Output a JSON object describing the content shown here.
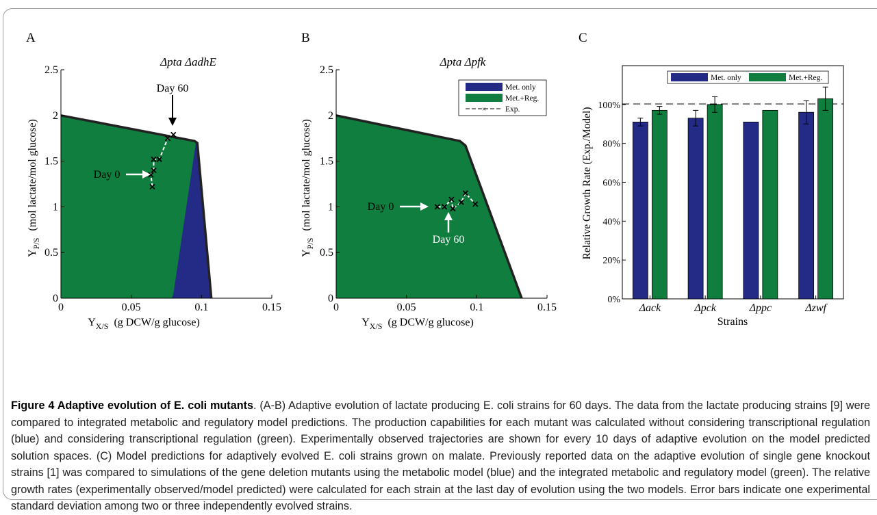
{
  "figure": {
    "caption_title": "Figure 4 Adaptive evolution of E. coli mutants",
    "caption_body": ". (A-B) Adaptive evolution of lactate producing E. coli strains for 60 days. The data from the lactate producing strains [9] were compared to integrated metabolic and regulatory model predictions. The production capabilities for each mutant was calculated without considering transcriptional regulation (blue) and considering transcriptional regulation (green). Experimentally observed trajectories are shown for every 10 days of adaptive evolution on the model predicted solution spaces. (C) Model predictions for adaptively evolved E. coli strains grown on malate. Previously reported data on the adaptive evolution of single gene knockout strains [1] was compared to simulations of the gene deletion mutants using the metabolic model (blue) and the integrated metabolic and regulatory model (green). The relative growth rates (experimentally observed/model predicted) were calculated for each strain at the last day of evolution using the two models. Error bars indicate one experimental standard deviation among two or three independently evolved strains."
  },
  "colors": {
    "met_only": "#242b87",
    "met_reg": "#0f7e3e",
    "outline": "#222222"
  },
  "chart_data": [
    {
      "panel": "A",
      "type": "area",
      "title": "Δpta ΔadhE",
      "xlabel": "Y X/S (g DCW/g glucose)",
      "ylabel": "Y P/S (mol lactate/mol glucose)",
      "xlim": [
        0,
        0.15
      ],
      "ylim": [
        0,
        2.5
      ],
      "xticks": [
        "0",
        "0.05",
        "0.1",
        "0.15"
      ],
      "yticks": [
        "0",
        "0.5",
        "1",
        "1.5",
        "2",
        "2.5"
      ],
      "series": [
        {
          "name": "Met. only",
          "polygon": [
            [
              0,
              0
            ],
            [
              0,
              2.0
            ],
            [
              0.095,
              1.72
            ],
            [
              0.097,
              1.7
            ],
            [
              0.107,
              0
            ],
            [
              0,
              0
            ]
          ]
        },
        {
          "name": "Met.+Reg.",
          "polygon": [
            [
              0,
              0
            ],
            [
              0,
              2.0
            ],
            [
              0.095,
              1.72
            ],
            [
              0.096,
              1.7
            ],
            [
              0.08,
              0.05
            ],
            [
              0.079,
              0
            ],
            [
              0,
              0
            ]
          ]
        },
        {
          "name": "Exp.",
          "points": [
            [
              0.065,
              1.22
            ],
            [
              0.064,
              1.35
            ],
            [
              0.066,
              1.4
            ],
            [
              0.066,
              1.52
            ],
            [
              0.07,
              1.52
            ],
            [
              0.076,
              1.75
            ],
            [
              0.08,
              1.79
            ]
          ]
        }
      ],
      "annotations": [
        {
          "text": "Day 60",
          "at": [
            0.08,
            1.79
          ]
        },
        {
          "text": "Day 0",
          "at": [
            0.064,
            1.35
          ]
        }
      ]
    },
    {
      "panel": "B",
      "type": "area",
      "title": "Δpta Δpfk",
      "xlabel": "Y X/S (g DCW/g glucose)",
      "ylabel": "Y P/S (mol lactate/mol glucose)",
      "xlim": [
        0,
        0.15
      ],
      "ylim": [
        0,
        2.5
      ],
      "xticks": [
        "0",
        "0.05",
        "0.1",
        "0.15"
      ],
      "yticks": [
        "0",
        "0.5",
        "1",
        "1.5",
        "2",
        "2.5"
      ],
      "legend": {
        "position": "top-right",
        "entries": [
          "Met. only",
          "Met.+Reg.",
          "Exp."
        ]
      },
      "series": [
        {
          "name": "Met. only",
          "polygon": [
            [
              0,
              0
            ],
            [
              0,
              2.0
            ],
            [
              0.088,
              1.72
            ],
            [
              0.092,
              1.67
            ],
            [
              0.132,
              0
            ],
            [
              0,
              0
            ]
          ]
        },
        {
          "name": "Met.+Reg.",
          "polygon": [
            [
              0,
              0
            ],
            [
              0,
              2.0
            ],
            [
              0.088,
              1.72
            ],
            [
              0.092,
              1.67
            ],
            [
              0.132,
              0
            ],
            [
              0,
              0
            ]
          ]
        },
        {
          "name": "Exp.",
          "points": [
            [
              0.072,
              1.0
            ],
            [
              0.077,
              1.0
            ],
            [
              0.082,
              1.08
            ],
            [
              0.083,
              0.98
            ],
            [
              0.089,
              1.05
            ],
            [
              0.092,
              1.15
            ],
            [
              0.099,
              1.03
            ]
          ]
        }
      ],
      "annotations": [
        {
          "text": "Day 0",
          "at": [
            0.072,
            1.0
          ]
        },
        {
          "text": "Day 60",
          "at": [
            0.077,
            1.0
          ]
        }
      ]
    },
    {
      "panel": "C",
      "type": "bar",
      "ylabel": "Relative Growth Rate (Exp./Model)",
      "xlabel": "Strains",
      "categories": [
        "Δack",
        "Δpck",
        "Δppc",
        "Δzwf"
      ],
      "ylim": [
        0,
        1.2
      ],
      "yticks": [
        "0%",
        "20%",
        "40%",
        "60%",
        "80%",
        "100%"
      ],
      "reference_line": 1.0,
      "legend": {
        "position": "top",
        "entries": [
          "Met. only",
          "Met.+Reg."
        ]
      },
      "series": [
        {
          "name": "Met. only",
          "values": [
            0.91,
            0.93,
            0.91,
            0.96
          ],
          "errors": [
            0.02,
            0.04,
            0.0,
            0.06
          ]
        },
        {
          "name": "Met.+Reg.",
          "values": [
            0.97,
            1.0,
            0.97,
            1.03
          ],
          "errors": [
            0.02,
            0.04,
            0.0,
            0.06
          ]
        }
      ]
    }
  ],
  "panels": {
    "A": {
      "letter": "A",
      "title": "Δpta ΔadhE",
      "xlabel_main": "Y",
      "xlabel_sub": "X/S",
      "xlabel_rest": "(g DCW/g glucose)",
      "ylabel_main": "Y",
      "ylabel_sub": "P/S",
      "ylabel_rest": "(mol lactate/mol glucose)",
      "day0": "Day 0",
      "day60": "Day 60"
    },
    "B": {
      "letter": "B",
      "title": "Δpta Δpfk",
      "xlabel_main": "Y",
      "xlabel_sub": "X/S",
      "xlabel_rest": "(g DCW/g glucose)",
      "ylabel_main": "Y",
      "ylabel_sub": "P/S",
      "ylabel_rest": "(mol lactate/mol glucose)",
      "day0": "Day 0",
      "day60": "Day 60",
      "legend": [
        "Met. only",
        "Met.+Reg.",
        "Exp."
      ]
    },
    "C": {
      "letter": "C",
      "ylabel": "Relative Growth Rate (Exp./Model)",
      "xlabel": "Strains",
      "legend": [
        "Met. only",
        "Met.+Reg."
      ]
    }
  }
}
